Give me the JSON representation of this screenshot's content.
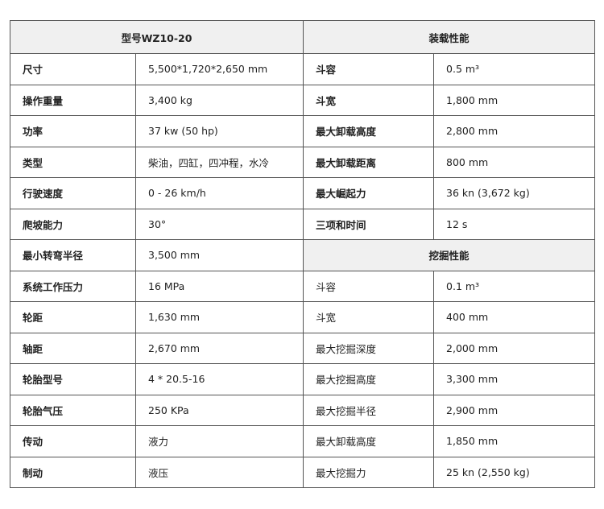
{
  "spec_table": {
    "model_label": "型号",
    "model": "WZ10-20",
    "left_rows": [
      [
        "尺寸",
        "5,500*1,720*2,650 mm"
      ],
      [
        "操作重量",
        "3,400 kg"
      ],
      [
        "功率",
        "37 kw (50 hp)"
      ],
      [
        "类型",
        "柴油，四缸，四冲程，水冷"
      ],
      [
        "行驶速度",
        "0 - 26 km/h"
      ],
      [
        "爬坡能力",
        "30°"
      ],
      [
        "最小转弯半径",
        "3,500 mm"
      ],
      [
        "系统工作压力",
        "16 MPa"
      ],
      [
        "轮距",
        "1,630 mm"
      ],
      [
        "轴距",
        "2,670 mm"
      ],
      [
        "轮胎型号",
        "4 * 20.5-16"
      ],
      [
        "轮胎气压",
        "250 KPa"
      ],
      [
        "传动",
        "液力"
      ],
      [
        "制动",
        "液压"
      ]
    ],
    "right_sections": [
      {
        "title": "装载性能",
        "rows": [
          [
            "斗容",
            "0.5 m³"
          ],
          [
            "斗宽",
            "1,800 mm"
          ],
          [
            "最大卸载高度",
            "2,800 mm"
          ],
          [
            "最大卸载距离",
            "800 mm"
          ],
          [
            "最大崛起力",
            "36 kn (3,672 kg)"
          ],
          [
            "三项和时间",
            "12 s"
          ]
        ]
      },
      {
        "title": "挖掘性能",
        "rows": [
          [
            "斗容",
            "0.1 m³"
          ],
          [
            "斗宽",
            "400 mm"
          ],
          [
            "最大挖掘深度",
            "2,000 mm"
          ],
          [
            "最大挖掘高度",
            "3,300 mm"
          ],
          [
            "最大挖掘半径",
            "2,900 mm"
          ],
          [
            "最大卸载高度",
            "1,850 mm"
          ],
          [
            "最大挖掘力",
            "25 kn (2,550 kg)"
          ]
        ]
      }
    ]
  }
}
